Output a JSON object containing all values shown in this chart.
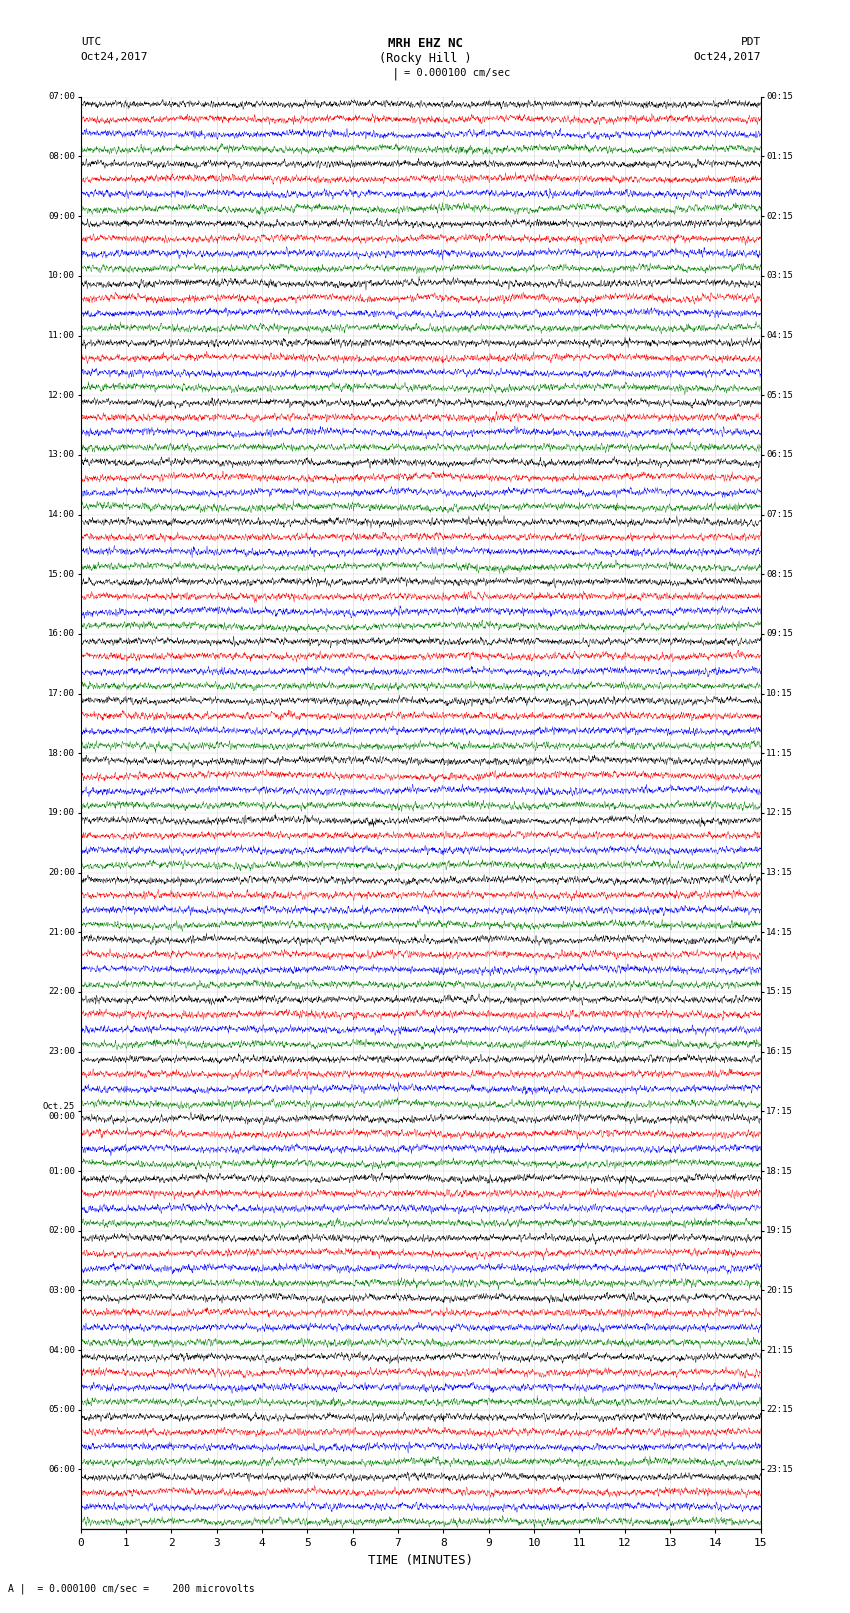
{
  "title_line1": "MRH EHZ NC",
  "title_line2": "(Rocky Hill )",
  "scale_label": "= 0.000100 cm/sec",
  "left_header_1": "UTC",
  "left_header_2": "Oct24,2017",
  "right_header_1": "PDT",
  "right_header_2": "Oct24,2017",
  "xlabel": "TIME (MINUTES)",
  "footer": "A |  = 0.000100 cm/sec =    200 microvolts",
  "left_times": [
    "07:00",
    "08:00",
    "09:00",
    "10:00",
    "11:00",
    "12:00",
    "13:00",
    "14:00",
    "15:00",
    "16:00",
    "17:00",
    "18:00",
    "19:00",
    "20:00",
    "21:00",
    "22:00",
    "23:00",
    "Oct.25\n00:00",
    "01:00",
    "02:00",
    "03:00",
    "04:00",
    "05:00",
    "06:00"
  ],
  "right_times": [
    "00:15",
    "01:15",
    "02:15",
    "03:15",
    "04:15",
    "05:15",
    "06:15",
    "07:15",
    "08:15",
    "09:15",
    "10:15",
    "11:15",
    "12:15",
    "13:15",
    "14:15",
    "15:15",
    "16:15",
    "17:15",
    "18:15",
    "19:15",
    "20:15",
    "21:15",
    "22:15",
    "23:15"
  ],
  "n_rows": 24,
  "traces_per_row": 4,
  "colors": [
    "black",
    "red",
    "blue",
    "green"
  ],
  "bg_color": "white",
  "figsize": [
    8.5,
    16.13
  ],
  "dpi": 100,
  "x_ticks": [
    0,
    1,
    2,
    3,
    4,
    5,
    6,
    7,
    8,
    9,
    10,
    11,
    12,
    13,
    14,
    15
  ],
  "x_lim": [
    0,
    15
  ],
  "noise_seed": 42
}
